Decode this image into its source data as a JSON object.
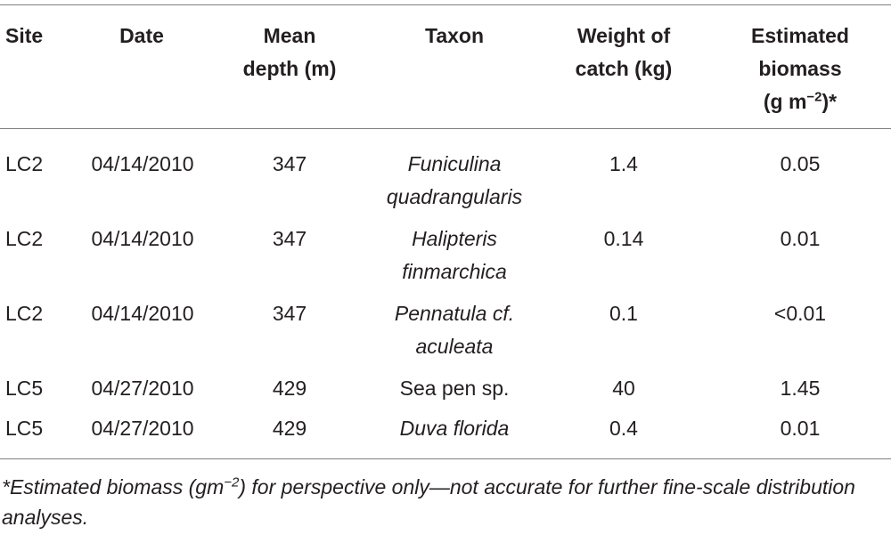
{
  "table": {
    "headers": {
      "site": "Site",
      "date": "Date",
      "depth_line1": "Mean",
      "depth_line2": "depth (m)",
      "taxon": "Taxon",
      "weight_line1": "Weight of",
      "weight_line2": "catch (kg)",
      "biomass_line1": "Estimated",
      "biomass_line2": "biomass",
      "biomass_line3_pre": "(g m",
      "biomass_line3_sup": "−2",
      "biomass_line3_post": ")*"
    },
    "rows": [
      {
        "site": "LC2",
        "date": "04/14/2010",
        "depth": "347",
        "taxon_line1": "Funiculina",
        "taxon_line2": "quadrangularis",
        "weight": "1.4",
        "biomass": "0.05"
      },
      {
        "site": "LC2",
        "date": "04/14/2010",
        "depth": "347",
        "taxon_line1": "Halipteris",
        "taxon_line2": "finmarchica",
        "weight": "0.14",
        "biomass": "0.01"
      },
      {
        "site": "LC2",
        "date": "04/14/2010",
        "depth": "347",
        "taxon_line1": "Pennatula cf.",
        "taxon_line2": "aculeata",
        "weight": "0.1",
        "biomass": "<0.01"
      },
      {
        "site": "LC5",
        "date": "04/27/2010",
        "depth": "429",
        "taxon_line1": "Sea pen sp.",
        "taxon_line2": "",
        "weight": "40",
        "biomass": "1.45"
      },
      {
        "site": "LC5",
        "date": "04/27/2010",
        "depth": "429",
        "taxon_line1": "Duva florida",
        "taxon_line2": "",
        "weight": "0.4",
        "biomass": "0.01"
      }
    ]
  },
  "footnote": {
    "pre": "*Estimated biomass (gm",
    "sup": "−2",
    "post": ") for perspective only—not accurate for further fine-scale distribution analyses."
  }
}
